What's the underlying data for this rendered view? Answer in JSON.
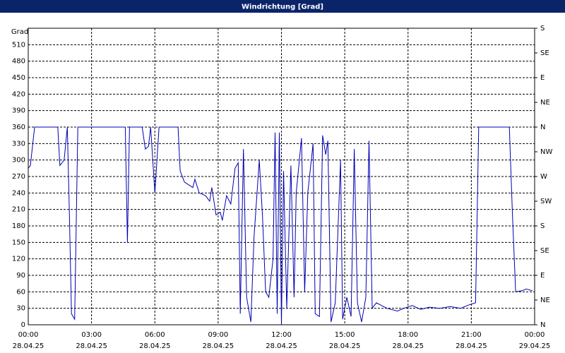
{
  "chart_data": {
    "type": "line",
    "title": "Windrichtung [Grad]",
    "y_label": "Grad",
    "x": [
      0.0,
      0.1,
      0.3,
      1.4,
      1.5,
      1.7,
      1.85,
      1.95,
      2.05,
      2.2,
      2.35,
      4.6,
      4.7,
      4.8,
      5.4,
      5.55,
      5.7,
      5.8,
      6.0,
      6.2,
      7.1,
      7.2,
      7.4,
      7.8,
      7.9,
      8.1,
      8.4,
      8.6,
      8.7,
      8.9,
      9.1,
      9.2,
      9.4,
      9.6,
      9.8,
      9.95,
      10.05,
      10.2,
      10.35,
      10.55,
      10.7,
      10.95,
      11.1,
      11.25,
      11.4,
      11.6,
      11.7,
      11.8,
      11.9,
      12.0,
      12.1,
      12.25,
      12.45,
      12.6,
      12.7,
      12.95,
      13.1,
      13.25,
      13.5,
      13.6,
      13.8,
      13.95,
      14.1,
      14.2,
      14.35,
      14.55,
      14.8,
      14.9,
      15.1,
      15.3,
      15.45,
      15.6,
      15.8,
      16.0,
      16.15,
      16.3,
      16.5,
      17.0,
      17.5,
      17.8,
      18.2,
      18.6,
      19.0,
      19.5,
      20.0,
      20.5,
      20.8,
      21.2,
      21.35,
      22.8,
      22.95,
      23.1,
      23.4,
      23.6,
      23.9
    ],
    "series": [
      {
        "name": "Windrichtung",
        "color": "#0000b4",
        "values": [
          285,
          290,
          360,
          360,
          290,
          300,
          360,
          200,
          20,
          10,
          360,
          360,
          150,
          360,
          360,
          320,
          325,
          360,
          240,
          360,
          360,
          280,
          260,
          250,
          265,
          240,
          235,
          225,
          250,
          200,
          205,
          190,
          235,
          220,
          285,
          295,
          20,
          320,
          50,
          5,
          160,
          300,
          200,
          60,
          50,
          120,
          350,
          20,
          350,
          0,
          280,
          30,
          290,
          50,
          240,
          340,
          60,
          240,
          330,
          20,
          15,
          345,
          310,
          335,
          5,
          40,
          300,
          10,
          50,
          15,
          320,
          40,
          5,
          50,
          335,
          30,
          40,
          30,
          25,
          30,
          35,
          28,
          32,
          30,
          33,
          30,
          35,
          40,
          360,
          360,
          200,
          60,
          62,
          65,
          62
        ]
      }
    ],
    "xlim": [
      0,
      24
    ],
    "ylim": [
      0,
      540
    ],
    "xticks": [
      {
        "value": 0,
        "label": "00:00"
      },
      {
        "value": 3,
        "label": "03:00"
      },
      {
        "value": 6,
        "label": "06:00"
      },
      {
        "value": 9,
        "label": "09:00"
      },
      {
        "value": 12,
        "label": "12:00"
      },
      {
        "value": 15,
        "label": "15:00"
      },
      {
        "value": 18,
        "label": "18:00"
      },
      {
        "value": 21,
        "label": "21:00"
      },
      {
        "value": 24,
        "label": "00:00"
      }
    ],
    "xtick_dates": [
      "28.04.25",
      "28.04.25",
      "28.04.25",
      "28.04.25",
      "28.04.25",
      "28.04.25",
      "28.04.25",
      "28.04.25",
      "29.04.25"
    ],
    "yticks": [
      0,
      30,
      60,
      90,
      120,
      150,
      180,
      210,
      240,
      270,
      300,
      330,
      360,
      390,
      420,
      450,
      480,
      510
    ],
    "y2lim": [
      0,
      540
    ],
    "y2ticks": [
      {
        "value": 0,
        "label": "N"
      },
      {
        "value": 45,
        "label": "NE"
      },
      {
        "value": 90,
        "label": "E"
      },
      {
        "value": 135,
        "label": "SE"
      },
      {
        "value": 180,
        "label": "S"
      },
      {
        "value": 225,
        "label": "SW"
      },
      {
        "value": 270,
        "label": "W"
      },
      {
        "value": 315,
        "label": "NW"
      },
      {
        "value": 360,
        "label": "N"
      },
      {
        "value": 405,
        "label": "NE"
      },
      {
        "value": 450,
        "label": "E"
      },
      {
        "value": 495,
        "label": "SE"
      },
      {
        "value": 540,
        "label": "S"
      }
    ],
    "grid": true
  }
}
